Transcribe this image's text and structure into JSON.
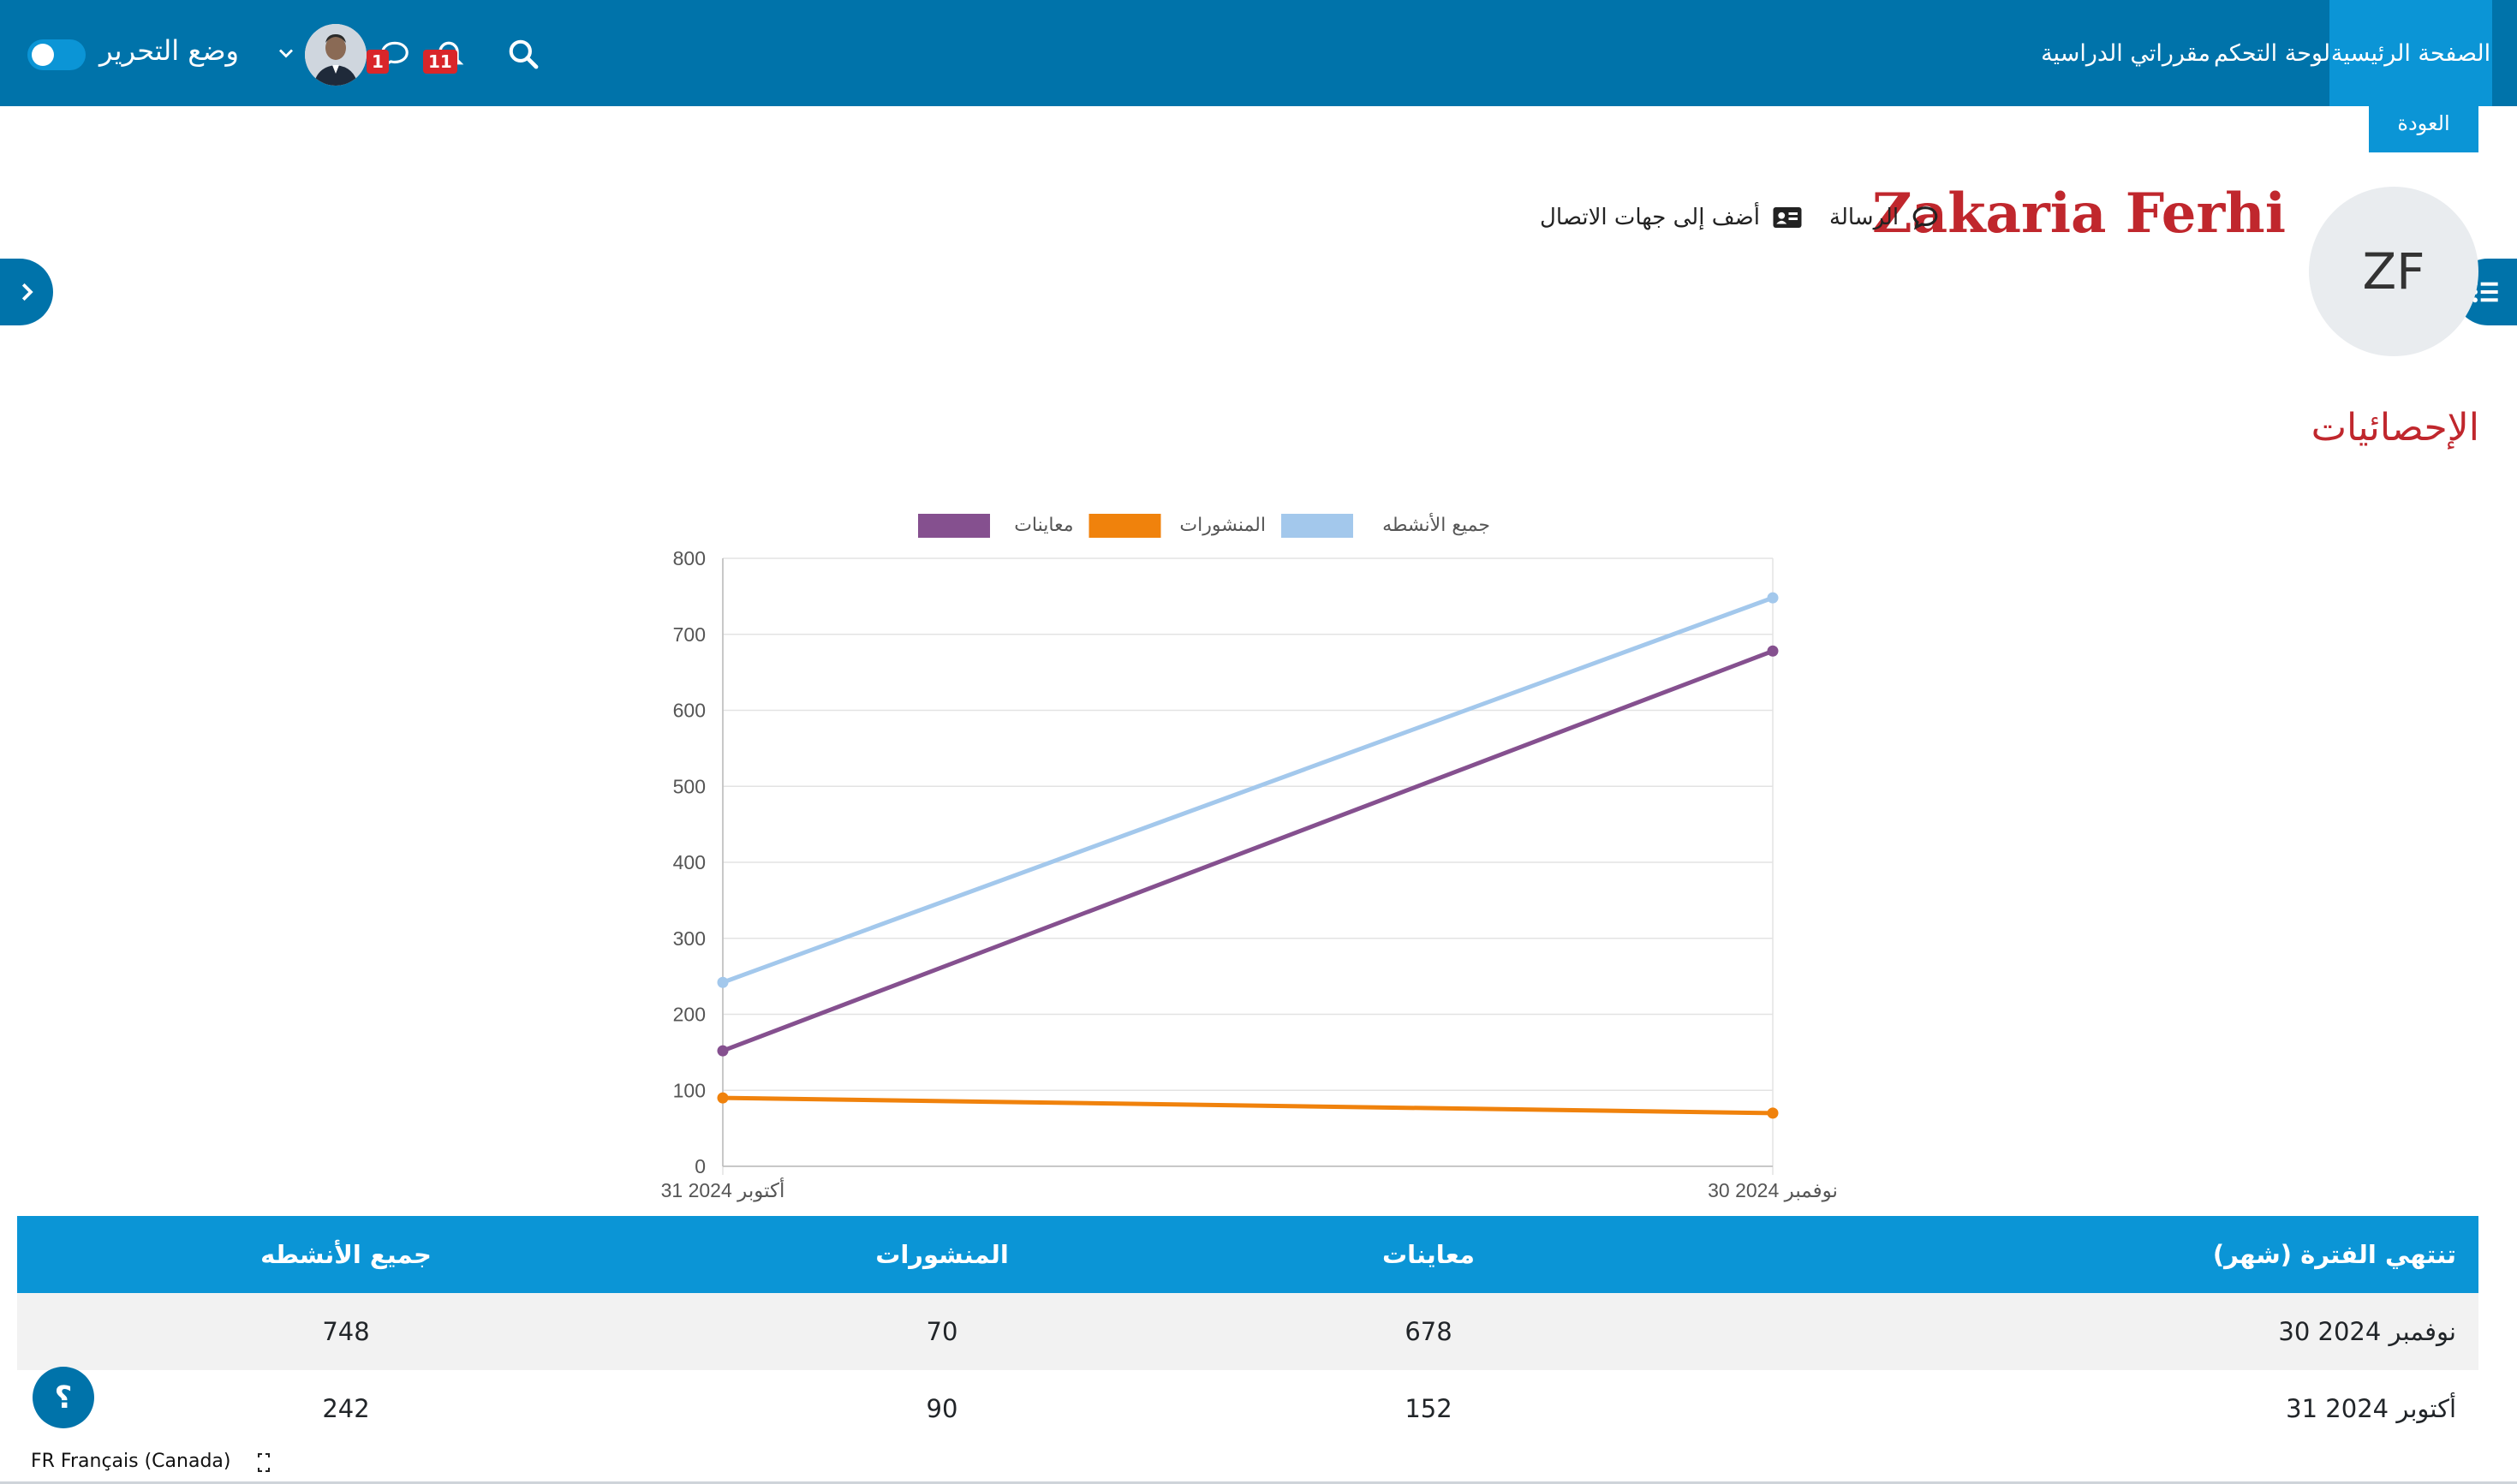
{
  "navbar": {
    "items": [
      {
        "label": "الصفحة الرئيسية",
        "active": true
      },
      {
        "label": "لوحة التحكم",
        "active": false
      },
      {
        "label": "مقرراتي الدراسية",
        "active": false
      }
    ],
    "edit_mode_label": "وضع التحرير",
    "edit_mode_on": false,
    "notifications_count": "11",
    "messages_count": "1",
    "icons": [
      "search-icon",
      "bell-icon",
      "chat-icon",
      "chevron-down-icon"
    ]
  },
  "back_button": "العودة",
  "profile": {
    "initials": "ZF",
    "name": "Zakaria Ferhi",
    "message_label": "الرسالة",
    "add_contact_label": "أضف إلى جهات الاتصال"
  },
  "section_title": "الإحصائيات",
  "chart_data": {
    "type": "line",
    "x": [
      "31 أكتوبر 2024",
      "30 نوفمبر 2024"
    ],
    "series": [
      {
        "name": "جميع الأنشطه",
        "values": [
          242,
          748
        ],
        "color": "#a3c8ec"
      },
      {
        "name": "المنشورات",
        "values": [
          90,
          70
        ],
        "color": "#f0820c"
      },
      {
        "name": "معاينات",
        "values": [
          152,
          678
        ],
        "color": "#85508f"
      }
    ],
    "ylim": [
      0,
      800
    ],
    "yticks": [
      "0",
      "100",
      "200",
      "300",
      "400",
      "500",
      "600",
      "700",
      "800"
    ],
    "legend": "top",
    "grid": true
  },
  "table": {
    "headers": {
      "period": "تنتهي الفترة (شهر)",
      "views": "معاينات",
      "posts": "المنشورات",
      "all": "جميع الأنشطه"
    },
    "rows": [
      {
        "period": "30 نوفمبر 2024",
        "views": "678",
        "posts": "70",
        "all": "748"
      },
      {
        "period": "31 أكتوبر 2024",
        "views": "152",
        "posts": "90",
        "all": "242"
      }
    ]
  },
  "footer": {
    "help_label": "؟",
    "language": "FR Français (Canada)"
  },
  "colors": {
    "navbar": "#0073aa",
    "accent": "#0b95d6",
    "name_red": "#c0272d"
  }
}
